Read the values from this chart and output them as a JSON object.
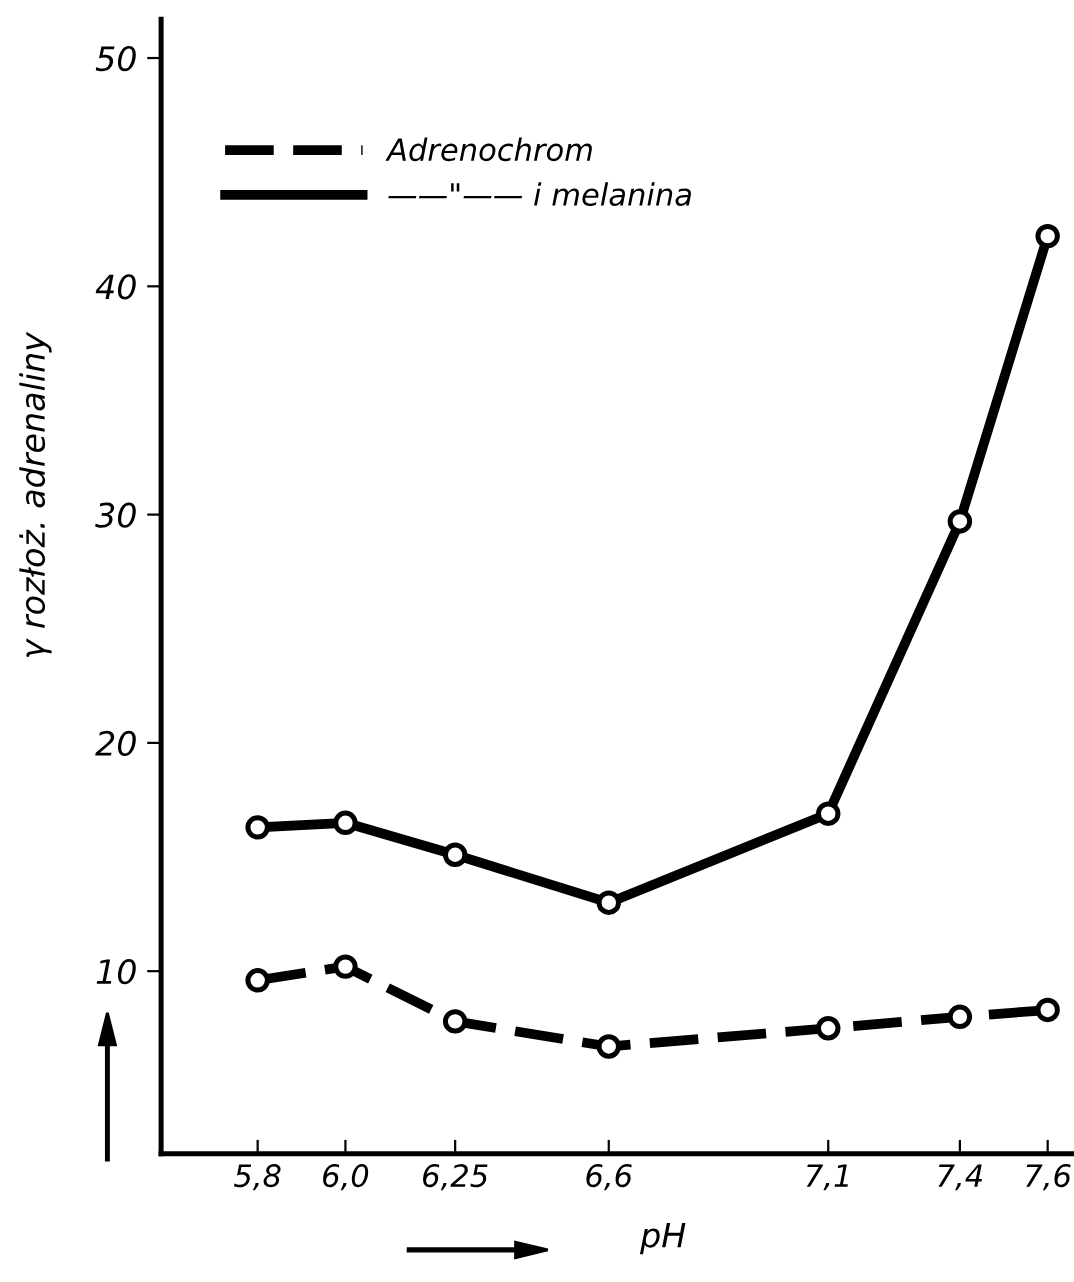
{
  "chart_data": {
    "type": "line",
    "xlabel": "pH",
    "ylabel": "γ rozłoż. adrenaliny",
    "x": [
      5.8,
      6.0,
      6.25,
      6.6,
      7.1,
      7.4,
      7.6
    ],
    "series": [
      {
        "name": "Adrenochrom",
        "color": "#000000",
        "line_style": "dashed",
        "values": [
          9.6,
          10.2,
          7.8,
          6.7,
          7.5,
          8.0,
          8.3
        ]
      },
      {
        "name": "——\"—— i melanina",
        "color": "#000000",
        "line_style": "solid",
        "values": [
          16.3,
          16.5,
          15.1,
          13.0,
          16.9,
          29.7,
          42.2
        ]
      }
    ],
    "xlim": [
      5.58,
      7.66
    ],
    "ylim": [
      2,
      51.7
    ],
    "xticks": [
      {
        "value": 5.8,
        "label": "5,8"
      },
      {
        "value": 6.0,
        "label": "6,0"
      },
      {
        "value": 6.25,
        "label": "6,25"
      },
      {
        "value": 6.6,
        "label": "6,6"
      },
      {
        "value": 7.1,
        "label": "7,1"
      },
      {
        "value": 7.4,
        "label": "7,4"
      },
      {
        "value": 7.6,
        "label": "7,6"
      }
    ],
    "yticks": [
      10,
      20,
      30,
      40,
      50
    ],
    "marker": "circle",
    "legend": "top left",
    "grid": false
  }
}
